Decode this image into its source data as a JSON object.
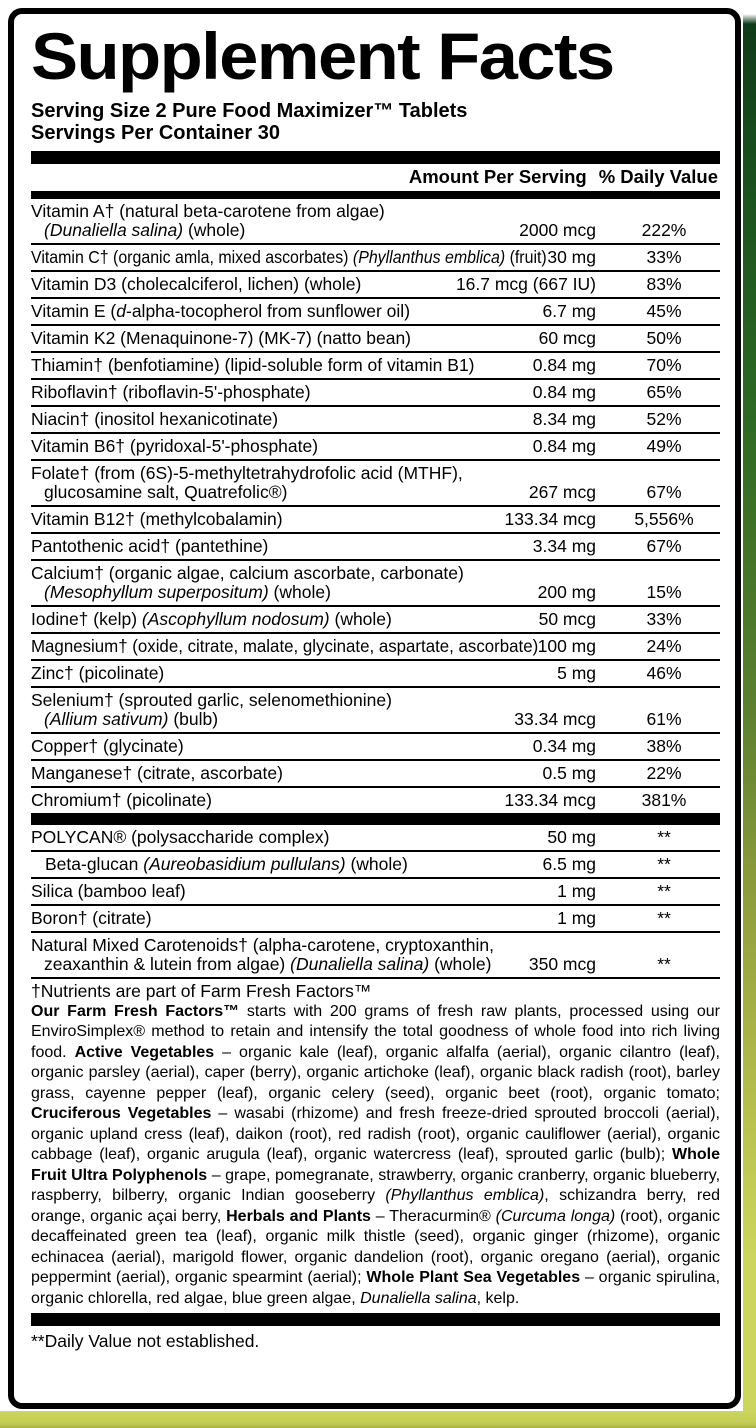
{
  "title": "Supplement Facts",
  "serving": {
    "size": "Serving Size 2 Pure Food Maximizer™ Tablets",
    "per_container": "Servings Per Container 30"
  },
  "header": {
    "amount": "Amount Per Serving",
    "dv": "% Daily Value"
  },
  "sections": [
    {
      "name": "vitamins-minerals-section",
      "rows": [
        {
          "lines": [
            [
              {
                "t": "Vitamin A† (natural beta-carotene from algae)"
              }
            ],
            [
              {
                "t": "(Dunaliella salina)",
                "i": true
              },
              {
                "t": " (whole)"
              }
            ]
          ],
          "amount": "2000 mcg",
          "dv": "222%"
        },
        {
          "lines": [
            [
              {
                "t": "Vitamin C† (organic amla, mixed ascorbates) "
              },
              {
                "t": "(Phyllanthus emblica)",
                "i": true
              },
              {
                "t": " (fruit)"
              }
            ]
          ],
          "amount": "30 mg",
          "dv": "33%"
        },
        {
          "lines": [
            [
              {
                "t": "Vitamin D3 (cholecalciferol, lichen) (whole)"
              }
            ]
          ],
          "amount": "16.7 mcg (667 IU)",
          "dv": "83%"
        },
        {
          "lines": [
            [
              {
                "t": "Vitamin E ("
              },
              {
                "t": "d",
                "i": true
              },
              {
                "t": "-alpha-tocopherol from sunflower oil)"
              }
            ]
          ],
          "amount": "6.7 mg",
          "dv": "45%"
        },
        {
          "lines": [
            [
              {
                "t": "Vitamin K2 (Menaquinone-7) (MK-7) (natto bean)"
              }
            ]
          ],
          "amount": "60 mcg",
          "dv": "50%"
        },
        {
          "lines": [
            [
              {
                "t": "Thiamin† (benfotiamine) (lipid-soluble form of vitamin B1)"
              }
            ]
          ],
          "amount": "0.84 mg",
          "dv": "70%"
        },
        {
          "lines": [
            [
              {
                "t": "Riboflavin† (riboflavin-5'-phosphate)"
              }
            ]
          ],
          "amount": "0.84 mg",
          "dv": "65%"
        },
        {
          "lines": [
            [
              {
                "t": "Niacin† (inositol hexanicotinate)"
              }
            ]
          ],
          "amount": "8.34 mg",
          "dv": "52%"
        },
        {
          "lines": [
            [
              {
                "t": "Vitamin B6† (pyridoxal-5'-phosphate)"
              }
            ]
          ],
          "amount": "0.84 mg",
          "dv": "49%"
        },
        {
          "lines": [
            [
              {
                "t": "Folate† (from (6S)-5-methyltetrahydrofolic acid (MTHF),"
              }
            ],
            [
              {
                "t": "glucosamine salt, Quatrefolic®)"
              }
            ]
          ],
          "amount": "267 mcg",
          "dv": "67%"
        },
        {
          "lines": [
            [
              {
                "t": "Vitamin B12† (methylcobalamin)"
              }
            ]
          ],
          "amount": "133.34 mcg",
          "dv": "5,556%"
        },
        {
          "lines": [
            [
              {
                "t": "Pantothenic acid† (pantethine)"
              }
            ]
          ],
          "amount": "3.34 mg",
          "dv": "67%"
        },
        {
          "lines": [
            [
              {
                "t": "Calcium† (organic algae, calcium ascorbate, carbonate)"
              }
            ],
            [
              {
                "t": "(Mesophyllum superpositum)",
                "i": true
              },
              {
                "t": " (whole)"
              }
            ]
          ],
          "amount": "200 mg",
          "dv": "15%"
        },
        {
          "lines": [
            [
              {
                "t": "Iodine† (kelp) "
              },
              {
                "t": "(Ascophyllum nodosum)",
                "i": true
              },
              {
                "t": " (whole)"
              }
            ]
          ],
          "amount": "50 mcg",
          "dv": "33%"
        },
        {
          "lines": [
            [
              {
                "t": "Magnesium† (oxide, citrate, malate, glycinate, aspartate, ascorbate)"
              }
            ]
          ],
          "amount": "100 mg",
          "dv": "24%"
        },
        {
          "lines": [
            [
              {
                "t": "Zinc† (picolinate)"
              }
            ]
          ],
          "amount": "5 mg",
          "dv": "46%"
        },
        {
          "lines": [
            [
              {
                "t": "Selenium† (sprouted garlic, selenomethionine)"
              }
            ],
            [
              {
                "t": "(Allium sativum)",
                "i": true
              },
              {
                "t": " (bulb)"
              }
            ]
          ],
          "amount": "33.34 mcg",
          "dv": "61%"
        },
        {
          "lines": [
            [
              {
                "t": "Copper† (glycinate)"
              }
            ]
          ],
          "amount": "0.34 mg",
          "dv": "38%"
        },
        {
          "lines": [
            [
              {
                "t": "Manganese† (citrate, ascorbate)"
              }
            ]
          ],
          "amount": "0.5 mg",
          "dv": "22%"
        },
        {
          "lines": [
            [
              {
                "t": "Chromium† (picolinate)"
              }
            ]
          ],
          "amount": "133.34 mcg",
          "dv": "381%"
        }
      ]
    },
    {
      "name": "other-ingredients-section",
      "rows": [
        {
          "lines": [
            [
              {
                "t": "POLYCAN® (polysaccharide complex)"
              }
            ]
          ],
          "amount": "50 mg",
          "dv": "**"
        },
        {
          "indent": true,
          "lines": [
            [
              {
                "t": "Beta-glucan "
              },
              {
                "t": "(Aureobasidium pullulans)",
                "i": true
              },
              {
                "t": " (whole)"
              }
            ]
          ],
          "amount": "6.5 mg",
          "dv": "**"
        },
        {
          "lines": [
            [
              {
                "t": "Silica (bamboo leaf)"
              }
            ]
          ],
          "amount": "1 mg",
          "dv": "**"
        },
        {
          "lines": [
            [
              {
                "t": "Boron† (citrate)"
              }
            ]
          ],
          "amount": "1 mg",
          "dv": "**"
        },
        {
          "lines": [
            [
              {
                "t": "Natural Mixed Carotenoids† (alpha-carotene, cryptoxanthin,"
              }
            ],
            [
              {
                "t": "zeaxanthin & lutein from algae) "
              },
              {
                "t": "(Dunaliella salina)",
                "i": true
              },
              {
                "t": " (whole)"
              }
            ]
          ],
          "amount": "350 mcg",
          "dv": "**"
        }
      ]
    }
  ],
  "notes": {
    "dagger": "†Nutrients are part of Farm Fresh Factors™",
    "dv": "**Daily Value not established."
  },
  "description": [
    {
      "t": "Our Farm Fresh Factors™",
      "b": true
    },
    {
      "t": " starts with 200 grams of fresh raw plants, processed using our EnviroSimplex® method to retain and intensify the total goodness of whole food into rich living food. "
    },
    {
      "t": "Active Vegetables",
      "b": true
    },
    {
      "t": " – organic kale (leaf), organic alfalfa (aerial), organic cilantro (leaf), organic parsley (aerial), caper (berry), organic artichoke (leaf), organic black radish (root), barley grass, cayenne pepper (leaf), organic celery (seed), organic beet (root), organic tomato; "
    },
    {
      "t": "Cruciferous Vegetables",
      "b": true
    },
    {
      "t": " – wasabi (rhizome) and fresh freeze-dried sprouted broccoli (aerial), organic upland cress (leaf), daikon (root), red radish (root), organic cauliflower (aerial), organic cabbage (leaf), organic arugula (leaf), organic watercress (leaf), sprouted garlic (bulb); "
    },
    {
      "t": "Whole Fruit Ultra Polyphenols",
      "b": true
    },
    {
      "t": " – grape, pomegranate, strawberry, organic cranberry, organic blueberry, raspberry, bilberry, organic Indian gooseberry "
    },
    {
      "t": "(Phyllanthus emblica)",
      "i": true
    },
    {
      "t": ", schizandra berry, red orange, organic açai berry, "
    },
    {
      "t": "Herbals and Plants",
      "b": true
    },
    {
      "t": " – Theracurmin® "
    },
    {
      "t": "(Curcuma longa)",
      "i": true
    },
    {
      "t": " (root), organic decaffeinated green tea (leaf), organic milk thistle (seed), organic ginger (rhizome), organic echinacea (aerial), marigold flower, organic dandelion (root), organic oregano (aerial), organic peppermint (aerial), organic spearmint (aerial); "
    },
    {
      "t": "Whole Plant Sea Vegetables",
      "b": true
    },
    {
      "t": " – organic spirulina, organic chlorella, red algae, blue green algae, "
    },
    {
      "t": "Dunaliella salina",
      "i": true
    },
    {
      "t": ", kelp."
    }
  ],
  "colors": {
    "text": "#000000",
    "label_bg": "#ffffff",
    "package_dark_green": "#1c531f",
    "package_yellow_green": "#ccd65e"
  }
}
